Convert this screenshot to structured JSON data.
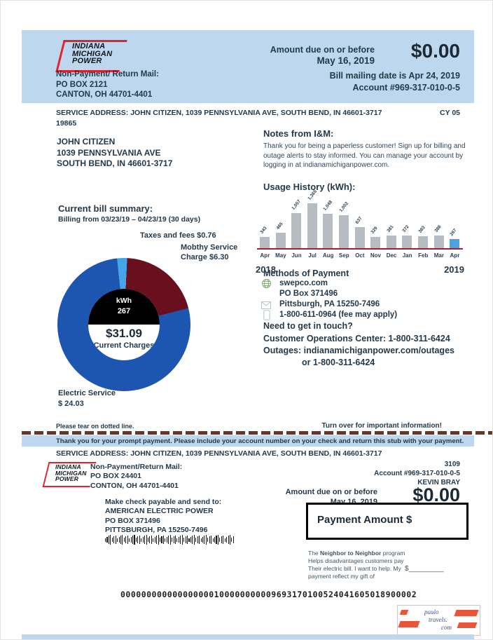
{
  "colors": {
    "header_bg": "#bdd7ee",
    "text_dark": "#24394a",
    "logo_red": "#e8202e",
    "tear_dash": "#6b3423"
  },
  "header": {
    "logo": [
      "INDIANA",
      "MICHIGAN",
      "POWER"
    ],
    "return_mail_label": "Non-Payment/ Return Mail:",
    "return_mail_line1": "PO BOX 2121",
    "return_mail_line2": "CANTON, OH 44701-4401",
    "amount_due_label": "Amount due on or before",
    "due_date": "May 16, 2019",
    "amount": "$0.00",
    "mailing_date": "Bill mailing date is Apr 24, 2019",
    "account": "Account #969-317-010-0-5"
  },
  "service": {
    "line": "SERVICE ADDRESS: JOHN CITIZEN, 1039 PENNSYLVANIA AVE, SOUTH BEND, IN 46601-3717",
    "cycle": "CY 05",
    "code": "19865"
  },
  "customer": {
    "name": "JOHN CITIZEN",
    "addr1": "1039 PENNSYLVANIA AVE",
    "addr2": "SOUTH BEND, IN 46601-3717"
  },
  "notes": {
    "title": "Notes from I&M:",
    "body": "Thank you for being a paperless customer! Sign up for billing and outage alerts to stay informed. You can manage your account by logging in at indianamichiganpower.com."
  },
  "summary": {
    "title": "Current bill summary:",
    "period": "Billing from 03/23/19 – 04/23/19 (30 days)",
    "taxes_label": "Taxes and fees $0.76",
    "monthly_label1": "Mobthy Service",
    "monthly_label2": "Charge $6.30",
    "electric_label1": "Electric Service",
    "electric_label2": "$ 24.03",
    "center_kwh_label": "kWh",
    "center_kwh": "267",
    "center_amount": "$31.09",
    "center_caption": "Current Charges"
  },
  "payment_methods": {
    "title": "Methods of Payment",
    "line1": "swepco.com",
    "line2": "PO Box 371496",
    "line3": "Pittsburgh, PA 15250-7496",
    "line4": "1-800-611-0964 (fee may apply)"
  },
  "contact": {
    "title": "Need to get in touch?",
    "line1": "Customer Operations Center: 1-800-311-6424",
    "line2": "Outages: indianamichiganpower.com/outages",
    "line3": "or 1-800-311-6424"
  },
  "tear": {
    "left": "Please tear on dotted line.",
    "right": "Turn over for important information!",
    "notice": "Thank you for your prompt payment. Please include your account number on your check and return this stub with your payment.",
    "service_line": "SERVICE ADDRESS: JOHN CITIZEN, 1039 PENNSYLVANIA AVE, SOUTH BEND, IN 46601-3717"
  },
  "stub": {
    "logo": [
      "INDIANA",
      "MICHIGAN",
      "POWER"
    ],
    "return_label": "Non-Payment/Return Mail:",
    "return_line1": "PO BOX 24401",
    "return_line2": "CONTON, OH 44701-4401",
    "check_label": "Make check payable and send to:",
    "check_line1": "AMERICAN ELECTRIC POWER",
    "check_line2": "PO BOX 371496",
    "check_line3": "PITTSBURGH, PA 15250-7496",
    "number": "3109",
    "account": "Account #969-317-010-0-5",
    "customer_name": "KEVIN BRAY",
    "amount_due_label": "Amount due on or before",
    "due_date": "May 16, 2019",
    "amount": "$0.00",
    "payment_box_label": "Payment Amount $",
    "neighbor_pre": "The ",
    "neighbor_bold": "Neighbor to Neighbor",
    "neighbor_post": " program",
    "neighbor_line2": "Helps disadvantages customers pay",
    "neighbor_line3": "Their electric bill. I want to help. My",
    "neighbor_line4": "payment reflect my gift of",
    "gift": "$_________"
  },
  "micr": "000000000000000000100000000009693170100524041605018900002",
  "watermark": {
    "line1": "paulo",
    "line2": "travels.",
    "line3": "com"
  },
  "chart_data": [
    {
      "type": "bar",
      "title": "Usage History (kWh):",
      "categories": [
        "Apr",
        "May",
        "Jun",
        "Jul",
        "Aug",
        "Sep",
        "Oct",
        "Nov",
        "Dec",
        "Jan",
        "Feb",
        "Mar",
        "Apr"
      ],
      "values": [
        343,
        465,
        1057,
        1365,
        1048,
        1002,
        637,
        329,
        381,
        372,
        363,
        388,
        267
      ],
      "labels": [
        "343",
        "465",
        "1,057",
        "1,365",
        "1,048",
        "1,002",
        "637",
        "329",
        "381",
        "372",
        "363",
        "388",
        "267"
      ],
      "year_left": "2018",
      "year_right": "2019",
      "xlabel": "",
      "ylabel": "kWh",
      "ylim": [
        0,
        1400
      ],
      "grid": false,
      "bar_color": "#b6bcc2",
      "highlight_color": "#4da3dd",
      "highlight_index": 12,
      "baseline_color": "#9c2333"
    },
    {
      "type": "pie",
      "title": "Current bill summary",
      "start_angle": -6,
      "slices": [
        {
          "label": "Taxes and fees",
          "value": 0.76,
          "color": "#45a5e6"
        },
        {
          "label": "Mobthy Service Charge",
          "value": 6.3,
          "color": "#6a0f1e"
        },
        {
          "label": "Electric Service",
          "value": 24.03,
          "color": "#1d56b0"
        }
      ],
      "total_label": "$31.09",
      "center_kwh": 267,
      "legend_position": "annotations"
    }
  ]
}
